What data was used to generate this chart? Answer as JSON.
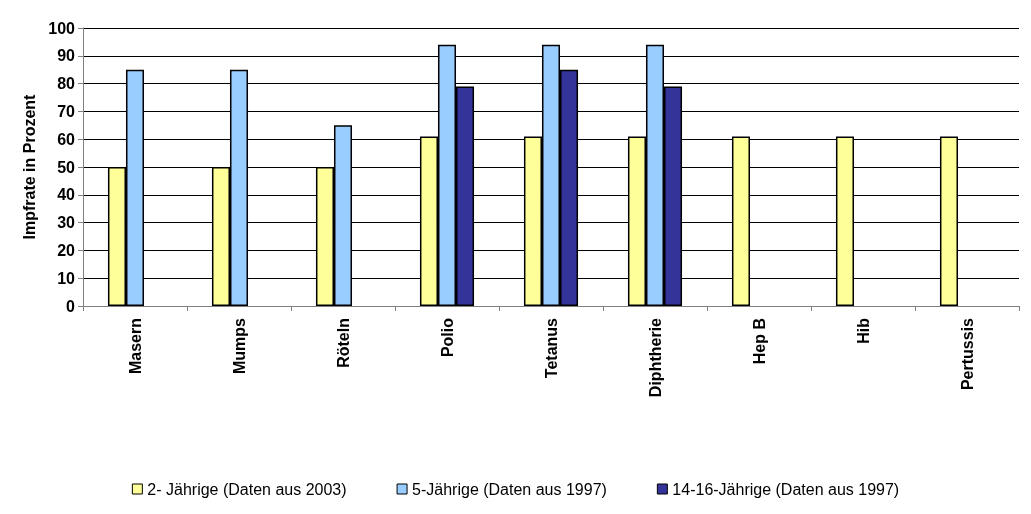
{
  "chart_data": {
    "type": "bar",
    "ylabel": "Impfrate in Prozent",
    "categories": [
      "Masern",
      "Mumps",
      "Röteln",
      "Polio",
      "Tetanus",
      "Diphtherie",
      "Hep B",
      "Hib",
      "Pertussis"
    ],
    "series": [
      {
        "name": "2- Jährige (Daten aus 2003)",
        "color": "#ffff99",
        "values": [
          50,
          50,
          50,
          61,
          61,
          61,
          61,
          61,
          61
        ]
      },
      {
        "name": "5-Jährige (Daten aus 1997)",
        "color": "#99ccff",
        "values": [
          85,
          85,
          65,
          94,
          94,
          94,
          null,
          null,
          null
        ]
      },
      {
        "name": "14-16-Jährige (Daten aus 1997)",
        "color": "#333399",
        "values": [
          null,
          null,
          null,
          79,
          85,
          79,
          null,
          null,
          null
        ]
      }
    ],
    "ylim": [
      0,
      100
    ],
    "yticks": [
      0,
      10,
      20,
      30,
      40,
      50,
      60,
      70,
      80,
      90,
      100
    ],
    "grid": "y",
    "legend": "bottom"
  }
}
